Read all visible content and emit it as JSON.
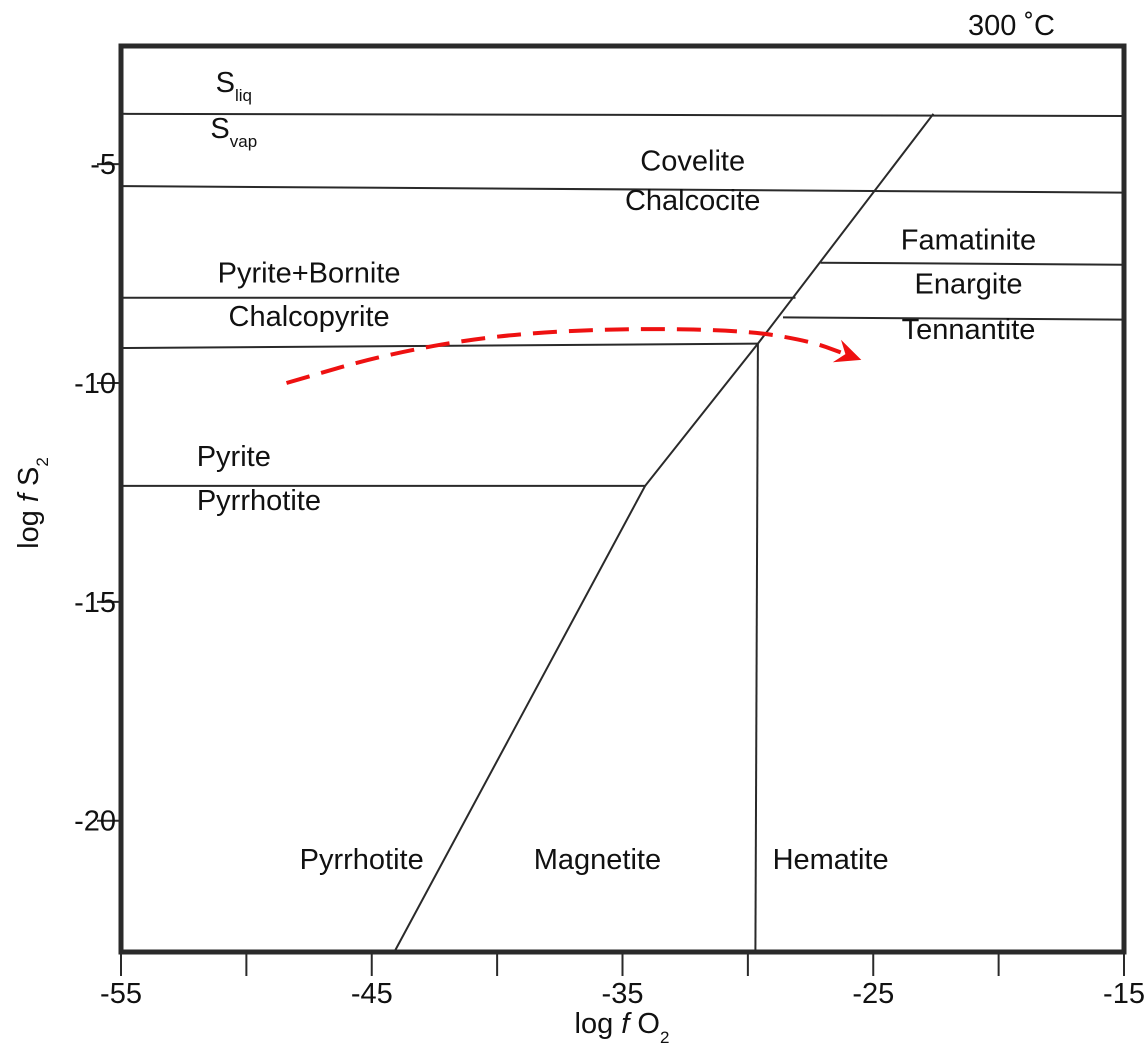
{
  "chart_data": {
    "type": "line",
    "temperature_label": "300 ˚C",
    "xlabel": {
      "prefix": "log ",
      "italic": "f",
      "main": " O",
      "subscript": "2"
    },
    "ylabel": {
      "prefix": "log ",
      "italic": "f",
      "main": " S",
      "subscript": "2"
    },
    "xlim": [
      -55,
      -15
    ],
    "ylim": [
      -23,
      -2.3
    ],
    "x_ticks": [
      -55,
      -50,
      -45,
      -40,
      -35,
      -30,
      -25,
      -20,
      -15
    ],
    "x_tick_labels": [
      "-55",
      "-45",
      "-35",
      "-25",
      "-15"
    ],
    "x_tick_label_values": [
      -55,
      -45,
      -35,
      -25,
      -15
    ],
    "y_ticks": [
      -5,
      -10,
      -15,
      -20
    ],
    "y_tick_labels": [
      "-5",
      "-10",
      "-15",
      "-20"
    ],
    "boundaries": [
      {
        "name": "S liquid / S vapour",
        "points": [
          [
            -55,
            -3.85
          ],
          [
            -15,
            -3.9
          ]
        ]
      },
      {
        "name": "Covelite / Chalcocite",
        "points": [
          [
            -55,
            -5.5
          ],
          [
            -15,
            -5.65
          ]
        ]
      },
      {
        "name": "Pyrite+Bornite / Chalcopyrite",
        "points": [
          [
            -55,
            -8.05
          ],
          [
            -28.1,
            -8.05
          ]
        ]
      },
      {
        "name": "Famatinite / Enargite",
        "points": [
          [
            -27.1,
            -7.25
          ],
          [
            -15,
            -7.3
          ]
        ]
      },
      {
        "name": "Enargite / Tennantite",
        "points": [
          [
            -28.6,
            -8.5
          ],
          [
            -15,
            -8.55
          ]
        ]
      },
      {
        "name": "Chalcopyrite lower",
        "points": [
          [
            -55,
            -9.2
          ],
          [
            -29.6,
            -9.1
          ]
        ]
      },
      {
        "name": "Pyrite / Pyrrhotite",
        "points": [
          [
            -55,
            -12.35
          ],
          [
            -34.1,
            -12.35
          ]
        ]
      },
      {
        "name": "Pyrrhotite / Magnetite",
        "points": [
          [
            -44.1,
            -23
          ],
          [
            -34.1,
            -12.35
          ],
          [
            -29.6,
            -9.1
          ],
          [
            -22.6,
            -3.85
          ]
        ]
      },
      {
        "name": "Magnetite / Hematite",
        "points": [
          [
            -29.7,
            -23
          ],
          [
            -29.6,
            -9.1
          ]
        ]
      }
    ],
    "trend_arrow": {
      "style": "dashed",
      "color": "#ee1111",
      "points": [
        [
          -48.4,
          -10
        ],
        [
          -44.5,
          -9.35
        ],
        [
          -40,
          -8.9
        ],
        [
          -35,
          -8.75
        ],
        [
          -30,
          -8.8
        ],
        [
          -27.5,
          -9.05
        ],
        [
          -26.3,
          -9.3
        ]
      ]
    },
    "field_labels": [
      {
        "text": "S",
        "subscript": "liq",
        "x": -50.5,
        "y": -3.35
      },
      {
        "text": "S",
        "subscript": "vap",
        "x": -50.5,
        "y": -4.4
      },
      {
        "text": "Covelite",
        "x": -32.2,
        "y": -5.15
      },
      {
        "text": "Chalcocite",
        "x": -32.2,
        "y": -6.05
      },
      {
        "text": "Famatinite",
        "x": -21.2,
        "y": -6.95
      },
      {
        "text": "Pyrite+Bornite",
        "x": -47.5,
        "y": -7.7
      },
      {
        "text": "Enargite",
        "x": -21.2,
        "y": -7.95
      },
      {
        "text": "Chalcopyrite",
        "x": -47.5,
        "y": -8.7
      },
      {
        "text": "Tennantite",
        "x": -21.2,
        "y": -9
      },
      {
        "text": "Pyrite",
        "x": -50.5,
        "y": -11.9
      },
      {
        "text": "Pyrrhotite",
        "x": -49.5,
        "y": -12.9
      },
      {
        "text": "Pyrrhotite",
        "x": -45.4,
        "y": -21.1
      },
      {
        "text": "Magnetite",
        "x": -36,
        "y": -21.1
      },
      {
        "text": "Hematite",
        "x": -26.7,
        "y": -21.1
      }
    ]
  }
}
